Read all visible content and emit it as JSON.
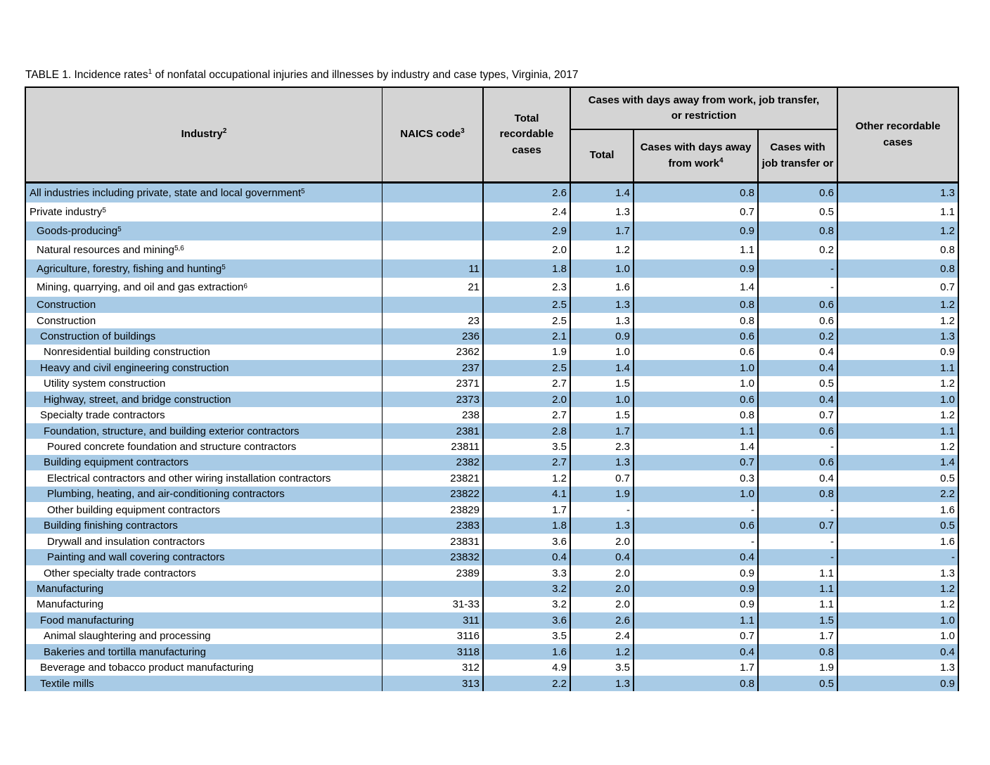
{
  "title": {
    "prefix": "TABLE 1. Incidence rates",
    "sup": "1",
    "suffix": " of nonfatal occupational injuries and illnesses by industry and case types, Virginia, 2017"
  },
  "colors": {
    "row_blue": "#a8cbe6",
    "header_gray": "#d4d4d4",
    "border": "#000000"
  },
  "header": {
    "industry": {
      "label": "Industry",
      "sup": "2"
    },
    "naics": {
      "label": "NAICS code",
      "sup": "3"
    },
    "total_recordable": "Total recordable cases",
    "group": "Cases with days away from work, job transfer, or restriction",
    "sub_total": "Total",
    "sub_days_away": {
      "label": "Cases with days away from work",
      "sup": "4"
    },
    "sub_job_transfer": "Cases with job transfer or",
    "other": "Other recordable cases"
  },
  "table": {
    "columns": [
      "Industry",
      "NAICS code",
      "Total recordable cases",
      "Total",
      "Cases with days away from work",
      "Cases with job transfer or",
      "Other recordable cases"
    ],
    "rows": [
      {
        "industry": "All industries including private, state and local government",
        "sup": "5",
        "indent": 0,
        "shade": "blue",
        "naics": "",
        "total_recordable": "2.6",
        "total": "1.4",
        "days_away": "0.8",
        "job_transfer": "0.6",
        "other": "1.3"
      },
      {
        "industry": "Private industry",
        "sup": "5",
        "indent": 0,
        "shade": "white",
        "naics": "",
        "total_recordable": "2.4",
        "total": "1.3",
        "days_away": "0.7",
        "job_transfer": "0.5",
        "other": "1.1"
      },
      {
        "industry": "Goods-producing",
        "sup": "5",
        "indent": 1,
        "shade": "blue",
        "naics": "",
        "total_recordable": "2.9",
        "total": "1.7",
        "days_away": "0.9",
        "job_transfer": "0.8",
        "other": "1.2"
      },
      {
        "industry": "Natural resources and mining",
        "sup": "5,6",
        "indent": 1,
        "shade": "white",
        "naics": "",
        "total_recordable": "2.0",
        "total": "1.2",
        "days_away": "1.1",
        "job_transfer": "0.2",
        "other": "0.8"
      },
      {
        "industry": "Agriculture, forestry, fishing and hunting",
        "sup": "5",
        "indent": 1,
        "shade": "blue",
        "naics": "11",
        "total_recordable": "1.8",
        "total": "1.0",
        "days_away": "0.9",
        "job_transfer": "-",
        "other": "0.8"
      },
      {
        "industry": "Mining, quarrying, and oil and gas extraction",
        "sup": "6",
        "indent": 1,
        "shade": "white",
        "naics": "21",
        "total_recordable": "2.3",
        "total": "1.6",
        "days_away": "1.4",
        "job_transfer": "-",
        "other": "0.7"
      },
      {
        "industry": "Construction",
        "sup": "",
        "indent": 1,
        "shade": "blue",
        "naics": "",
        "total_recordable": "2.5",
        "total": "1.3",
        "days_away": "0.8",
        "job_transfer": "0.6",
        "other": "1.2"
      },
      {
        "industry": "Construction",
        "sup": "",
        "indent": 1,
        "shade": "white",
        "naics": "23",
        "total_recordable": "2.5",
        "total": "1.3",
        "days_away": "0.8",
        "job_transfer": "0.6",
        "other": "1.2"
      },
      {
        "industry": "Construction of buildings",
        "sup": "",
        "indent": 2,
        "shade": "blue",
        "naics": "236",
        "total_recordable": "2.1",
        "total": "0.9",
        "days_away": "0.6",
        "job_transfer": "0.2",
        "other": "1.3"
      },
      {
        "industry": "Nonresidential building construction",
        "sup": "",
        "indent": 3,
        "shade": "white",
        "naics": "2362",
        "total_recordable": "1.9",
        "total": "1.0",
        "days_away": "0.6",
        "job_transfer": "0.4",
        "other": "0.9"
      },
      {
        "industry": "Heavy and civil engineering construction",
        "sup": "",
        "indent": 2,
        "shade": "blue",
        "naics": "237",
        "total_recordable": "2.5",
        "total": "1.4",
        "days_away": "1.0",
        "job_transfer": "0.4",
        "other": "1.1"
      },
      {
        "industry": "Utility system construction",
        "sup": "",
        "indent": 3,
        "shade": "white",
        "naics": "2371",
        "total_recordable": "2.7",
        "total": "1.5",
        "days_away": "1.0",
        "job_transfer": "0.5",
        "other": "1.2"
      },
      {
        "industry": "Highway, street, and bridge construction",
        "sup": "",
        "indent": 3,
        "shade": "blue",
        "naics": "2373",
        "total_recordable": "2.0",
        "total": "1.0",
        "days_away": "0.6",
        "job_transfer": "0.4",
        "other": "1.0"
      },
      {
        "industry": "Specialty trade contractors",
        "sup": "",
        "indent": 2,
        "shade": "white",
        "naics": "238",
        "total_recordable": "2.7",
        "total": "1.5",
        "days_away": "0.8",
        "job_transfer": "0.7",
        "other": "1.2"
      },
      {
        "industry": "Foundation, structure, and building exterior contractors",
        "sup": "",
        "indent": 3,
        "shade": "blue",
        "naics": "2381",
        "total_recordable": "2.8",
        "total": "1.7",
        "days_away": "1.1",
        "job_transfer": "0.6",
        "other": "1.1"
      },
      {
        "industry": "Poured concrete foundation and structure contractors",
        "sup": "",
        "indent": 4,
        "shade": "white",
        "naics": "23811",
        "total_recordable": "3.5",
        "total": "2.3",
        "days_away": "1.4",
        "job_transfer": "-",
        "other": "1.2"
      },
      {
        "industry": "Building equipment contractors",
        "sup": "",
        "indent": 3,
        "shade": "blue",
        "naics": "2382",
        "total_recordable": "2.7",
        "total": "1.3",
        "days_away": "0.7",
        "job_transfer": "0.6",
        "other": "1.4"
      },
      {
        "industry": "Electrical contractors and other wiring installation contractors",
        "sup": "",
        "indent": 4,
        "shade": "white",
        "naics": "23821",
        "total_recordable": "1.2",
        "total": "0.7",
        "days_away": "0.3",
        "job_transfer": "0.4",
        "other": "0.5"
      },
      {
        "industry": "Plumbing, heating, and air-conditioning contractors",
        "sup": "",
        "indent": 4,
        "shade": "blue",
        "naics": "23822",
        "total_recordable": "4.1",
        "total": "1.9",
        "days_away": "1.0",
        "job_transfer": "0.8",
        "other": "2.2"
      },
      {
        "industry": "Other building equipment contractors",
        "sup": "",
        "indent": 4,
        "shade": "white",
        "naics": "23829",
        "total_recordable": "1.7",
        "total": "-",
        "days_away": "-",
        "job_transfer": "-",
        "other": "1.6"
      },
      {
        "industry": "Building finishing contractors",
        "sup": "",
        "indent": 3,
        "shade": "blue",
        "naics": "2383",
        "total_recordable": "1.8",
        "total": "1.3",
        "days_away": "0.6",
        "job_transfer": "0.7",
        "other": "0.5"
      },
      {
        "industry": "Drywall and insulation contractors",
        "sup": "",
        "indent": 4,
        "shade": "white",
        "naics": "23831",
        "total_recordable": "3.6",
        "total": "2.0",
        "days_away": "-",
        "job_transfer": "-",
        "other": "1.6"
      },
      {
        "industry": "Painting and wall covering contractors",
        "sup": "",
        "indent": 4,
        "shade": "blue",
        "naics": "23832",
        "total_recordable": "0.4",
        "total": "0.4",
        "days_away": "0.4",
        "job_transfer": "-",
        "other": "-"
      },
      {
        "industry": "Other specialty trade contractors",
        "sup": "",
        "indent": 3,
        "shade": "white",
        "naics": "2389",
        "total_recordable": "3.3",
        "total": "2.0",
        "days_away": "0.9",
        "job_transfer": "1.1",
        "other": "1.3"
      },
      {
        "industry": "Manufacturing",
        "sup": "",
        "indent": 1,
        "shade": "blue",
        "naics": "",
        "total_recordable": "3.2",
        "total": "2.0",
        "days_away": "0.9",
        "job_transfer": "1.1",
        "other": "1.2"
      },
      {
        "industry": "Manufacturing",
        "sup": "",
        "indent": 1,
        "shade": "white",
        "naics": "31-33",
        "total_recordable": "3.2",
        "total": "2.0",
        "days_away": "0.9",
        "job_transfer": "1.1",
        "other": "1.2"
      },
      {
        "industry": "Food manufacturing",
        "sup": "",
        "indent": 2,
        "shade": "blue",
        "naics": "311",
        "total_recordable": "3.6",
        "total": "2.6",
        "days_away": "1.1",
        "job_transfer": "1.5",
        "other": "1.0"
      },
      {
        "industry": "Animal slaughtering and processing",
        "sup": "",
        "indent": 3,
        "shade": "white",
        "naics": "3116",
        "total_recordable": "3.5",
        "total": "2.4",
        "days_away": "0.7",
        "job_transfer": "1.7",
        "other": "1.0"
      },
      {
        "industry": "Bakeries and tortilla manufacturing",
        "sup": "",
        "indent": 3,
        "shade": "blue",
        "naics": "3118",
        "total_recordable": "1.6",
        "total": "1.2",
        "days_away": "0.4",
        "job_transfer": "0.8",
        "other": "0.4"
      },
      {
        "industry": "Beverage and tobacco product manufacturing",
        "sup": "",
        "indent": 2,
        "shade": "white",
        "naics": "312",
        "total_recordable": "4.9",
        "total": "3.5",
        "days_away": "1.7",
        "job_transfer": "1.9",
        "other": "1.3"
      },
      {
        "industry": "Textile mills",
        "sup": "",
        "indent": 2,
        "shade": "blue",
        "naics": "313",
        "total_recordable": "2.2",
        "total": "1.3",
        "days_away": "0.8",
        "job_transfer": "0.5",
        "other": "0.9"
      }
    ]
  }
}
